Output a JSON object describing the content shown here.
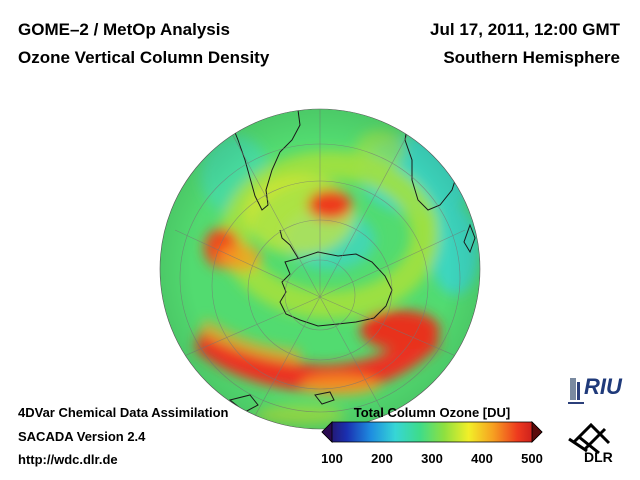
{
  "header": {
    "title_line1": "GOME–2 / MetOp Analysis",
    "title_line2": "Ozone Vertical Column Density",
    "datetime": "Jul 17, 2011, 12:00 GMT",
    "region": "Southern Hemisphere"
  },
  "footer": {
    "method": "4DVar Chemical Data Assimilation",
    "version": "SACADA Version 2.4",
    "url": "http://wdc.dlr.de"
  },
  "colorbar": {
    "title": "Total Column Ozone [DU]",
    "ticks": [
      "100",
      "200",
      "300",
      "400",
      "500"
    ],
    "range": [
      100,
      500
    ],
    "stops": [
      "#2a0a50",
      "#1a2fb0",
      "#1e8de0",
      "#36d6d6",
      "#3edc8a",
      "#8ee040",
      "#f2ef28",
      "#f6a021",
      "#ee3a1e",
      "#b8101c"
    ]
  },
  "logos": {
    "riu_text": "RIU",
    "dlr_text": "DLR"
  }
}
